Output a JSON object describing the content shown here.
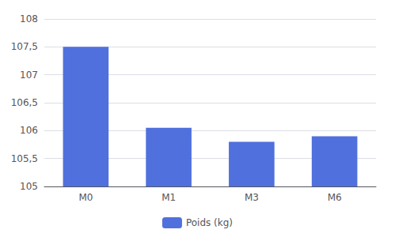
{
  "chart_data": {
    "type": "bar",
    "categories": [
      "M0",
      "M1",
      "M3",
      "M6"
    ],
    "series": [
      {
        "name": "Poids (kg)",
        "values": [
          107.5,
          106.05,
          105.8,
          105.9
        ]
      }
    ],
    "ylim": [
      105,
      108
    ],
    "yticks": [
      105,
      {
        "value": 105.5,
        "label": "105,5"
      },
      106,
      {
        "value": 106.5,
        "label": "106,5"
      },
      107,
      {
        "value": 107.5,
        "label": "107,5"
      },
      108
    ],
    "grid": true,
    "legend": "bottom"
  }
}
